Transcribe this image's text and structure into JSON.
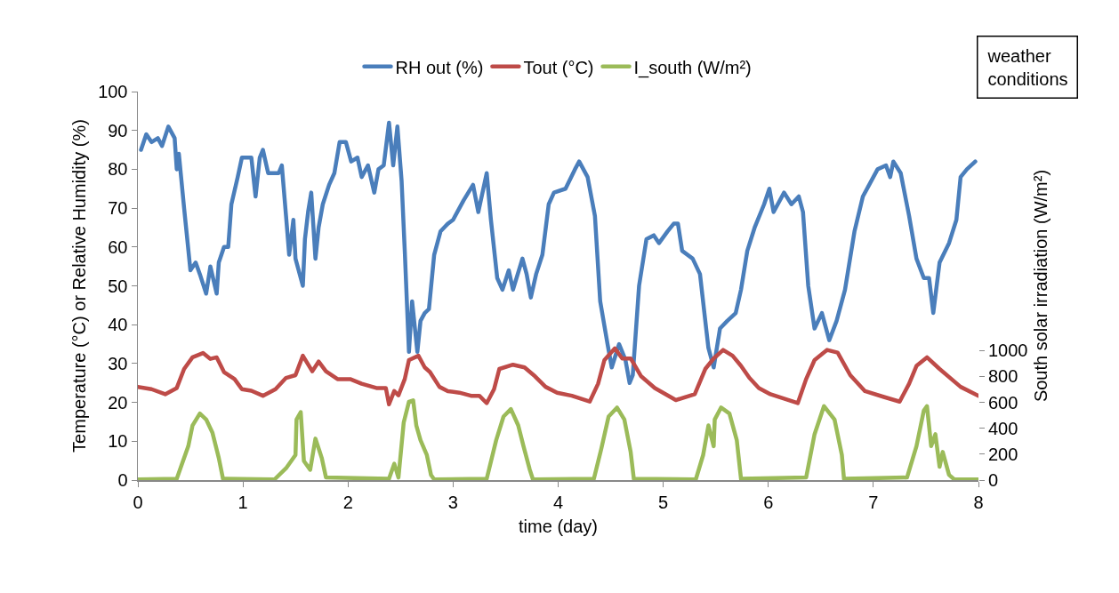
{
  "chart_data": {
    "type": "line",
    "xlabel": "time (day)",
    "ylabel": "Temperature (°C) or Relative Humidity (%)",
    "y2label": "South solar irradiation (W/m²)",
    "annotations": [
      "weather conditions"
    ],
    "xlim": [
      0,
      8
    ],
    "xticks": [
      0,
      1,
      2,
      3,
      4,
      5,
      6,
      7,
      8
    ],
    "ylim": [
      0,
      100
    ],
    "yticks": [
      0,
      10,
      20,
      30,
      40,
      50,
      60,
      70,
      80,
      90,
      100
    ],
    "y2lim": [
      0,
      3000
    ],
    "y2ticks": [
      0,
      200,
      400,
      600,
      800,
      1000
    ],
    "grid": false,
    "legend": "top",
    "marker": "none",
    "line_style": "solid",
    "series": [
      {
        "name": "RH out (%)",
        "color": "#4a7ebb",
        "x": [
          0.03,
          0.08,
          0.13,
          0.19,
          0.23,
          0.29,
          0.35,
          0.37,
          0.39,
          0.44,
          0.47,
          0.5,
          0.55,
          0.59,
          0.65,
          0.69,
          0.75,
          0.77,
          0.82,
          0.86,
          0.89,
          0.95,
          0.99,
          1.08,
          1.12,
          1.16,
          1.19,
          1.24,
          1.34,
          1.37,
          1.41,
          1.44,
          1.48,
          1.5,
          1.57,
          1.59,
          1.62,
          1.65,
          1.69,
          1.72,
          1.76,
          1.82,
          1.87,
          1.92,
          1.98,
          2.03,
          2.09,
          2.13,
          2.19,
          2.25,
          2.29,
          2.34,
          2.39,
          2.43,
          2.47,
          2.51,
          2.54,
          2.58,
          2.61,
          2.66,
          2.69,
          2.73,
          2.77,
          2.82,
          2.88,
          2.95,
          3.0,
          3.1,
          3.19,
          3.24,
          3.32,
          3.36,
          3.42,
          3.47,
          3.53,
          3.57,
          3.66,
          3.7,
          3.74,
          3.79,
          3.85,
          3.91,
          3.96,
          4.07,
          4.16,
          4.2,
          4.28,
          4.35,
          4.4,
          4.47,
          4.51,
          4.58,
          4.64,
          4.68,
          4.71,
          4.77,
          4.84,
          4.91,
          4.96,
          5.04,
          5.1,
          5.14,
          5.18,
          5.28,
          5.35,
          5.4,
          5.43,
          5.48,
          5.54,
          5.61,
          5.69,
          5.74,
          5.8,
          5.87,
          5.96,
          6.01,
          6.05,
          6.15,
          6.22,
          6.29,
          6.33,
          6.38,
          6.44,
          6.51,
          6.58,
          6.65,
          6.73,
          6.82,
          6.9,
          6.96,
          7.04,
          7.12,
          7.16,
          7.19,
          7.26,
          7.34,
          7.41,
          7.48,
          7.53,
          7.57,
          7.63,
          7.72,
          7.79,
          7.83,
          7.89,
          7.97
        ],
        "values": [
          85,
          89,
          87,
          88,
          86,
          91,
          88,
          80,
          84,
          70,
          62,
          54,
          56,
          53,
          48,
          55,
          48,
          56,
          60,
          60,
          71,
          78,
          83,
          83,
          73,
          83,
          85,
          79,
          79,
          81,
          68,
          58,
          67,
          57,
          50,
          62,
          69,
          74,
          57,
          65,
          71,
          76,
          79,
          87,
          87,
          82,
          83,
          78,
          81,
          74,
          80,
          81,
          92,
          81,
          91,
          77,
          59,
          33,
          46,
          33,
          41,
          43,
          44,
          58,
          64,
          66,
          67,
          72,
          76,
          69,
          79,
          67,
          52,
          49,
          54,
          49,
          57,
          53,
          47,
          53,
          58,
          71,
          74,
          75,
          80,
          82,
          78,
          68,
          46,
          35,
          29,
          35,
          31,
          25,
          27,
          50,
          62,
          63,
          61,
          64,
          66,
          66,
          59,
          57,
          53,
          41,
          34,
          29,
          39,
          41,
          43,
          49,
          59,
          65,
          71,
          75,
          69,
          74,
          71,
          73,
          69,
          50,
          39,
          43,
          36,
          41,
          49,
          64,
          73,
          76,
          80,
          81,
          78,
          82,
          79,
          68,
          57,
          52,
          52,
          43,
          56,
          61,
          67,
          78,
          80,
          82
        ]
      },
      {
        "name": "Tout (°C)",
        "color": "#be4b48",
        "x": [
          0,
          0.13,
          0.26,
          0.37,
          0.44,
          0.52,
          0.62,
          0.69,
          0.75,
          0.82,
          0.92,
          0.99,
          1.08,
          1.19,
          1.31,
          1.41,
          1.5,
          1.57,
          1.66,
          1.72,
          1.79,
          1.9,
          2.02,
          2.13,
          2.27,
          2.36,
          2.39,
          2.44,
          2.48,
          2.54,
          2.58,
          2.67,
          2.73,
          2.78,
          2.87,
          2.95,
          3.06,
          3.17,
          3.25,
          3.32,
          3.39,
          3.44,
          3.57,
          3.68,
          3.78,
          3.88,
          3.99,
          4.13,
          4.3,
          4.38,
          4.44,
          4.54,
          4.61,
          4.69,
          4.79,
          4.92,
          5.12,
          5.3,
          5.4,
          5.48,
          5.57,
          5.66,
          5.74,
          5.82,
          5.91,
          6.02,
          6.28,
          6.36,
          6.44,
          6.56,
          6.66,
          6.78,
          6.92,
          7.1,
          7.25,
          7.34,
          7.41,
          7.51,
          7.63,
          7.83,
          8.0
        ],
        "values": [
          24,
          23.4,
          22.1,
          23.7,
          28.6,
          31.6,
          32.7,
          31.2,
          31.6,
          27.8,
          26,
          23.4,
          23,
          21.7,
          23.4,
          26.3,
          27,
          32,
          28,
          30.5,
          28,
          26,
          26,
          24.8,
          23.7,
          23.7,
          19.5,
          22.9,
          21.8,
          26,
          30.9,
          32,
          29,
          27.8,
          24,
          22.9,
          22.5,
          21.7,
          21.7,
          19.8,
          23.4,
          28.6,
          29.7,
          29,
          26.7,
          24,
          22.5,
          21.7,
          20.2,
          24.8,
          30.9,
          33.9,
          31.3,
          31.3,
          26.7,
          23.7,
          20.6,
          22.1,
          28.6,
          31.3,
          33.5,
          32,
          29.4,
          26.3,
          23.7,
          22.1,
          19.8,
          26,
          30.9,
          33.5,
          32.8,
          27,
          22.9,
          21.4,
          20.2,
          24.8,
          29.4,
          31.6,
          28.6,
          24,
          21.7
        ]
      },
      {
        "name": "I_south (W/m²)",
        "color": "#9bbb59",
        "axis": "y2",
        "x": [
          0,
          0.37,
          0.42,
          0.48,
          0.52,
          0.59,
          0.65,
          0.71,
          0.77,
          0.81,
          1.3,
          1.41,
          1.5,
          1.51,
          1.55,
          1.58,
          1.64,
          1.69,
          1.75,
          1.79,
          2.39,
          2.44,
          2.48,
          2.53,
          2.58,
          2.62,
          2.65,
          2.69,
          2.75,
          2.79,
          2.82,
          3.32,
          3.41,
          3.48,
          3.55,
          3.62,
          3.67,
          3.73,
          3.76,
          4.34,
          4.41,
          4.48,
          4.56,
          4.63,
          4.69,
          4.72,
          5.31,
          5.38,
          5.43,
          5.48,
          5.49,
          5.55,
          5.63,
          5.7,
          5.74,
          6.36,
          6.44,
          6.53,
          6.63,
          6.7,
          6.72,
          7.32,
          7.41,
          7.48,
          7.51,
          7.55,
          7.59,
          7.63,
          7.66,
          7.72,
          7.77,
          8.0
        ],
        "values": [
          5,
          10,
          126,
          262,
          421,
          514,
          468,
          365,
          171,
          10,
          5,
          91,
          194,
          468,
          525,
          148,
          80,
          320,
          171,
          20,
          10,
          126,
          20,
          445,
          605,
          616,
          422,
          308,
          194,
          40,
          5,
          10,
          308,
          491,
          548,
          422,
          262,
          80,
          5,
          10,
          240,
          491,
          560,
          468,
          217,
          10,
          5,
          194,
          422,
          262,
          468,
          560,
          514,
          308,
          10,
          20,
          354,
          571,
          468,
          194,
          10,
          20,
          262,
          537,
          571,
          262,
          354,
          103,
          217,
          40,
          5,
          5
        ]
      }
    ]
  }
}
